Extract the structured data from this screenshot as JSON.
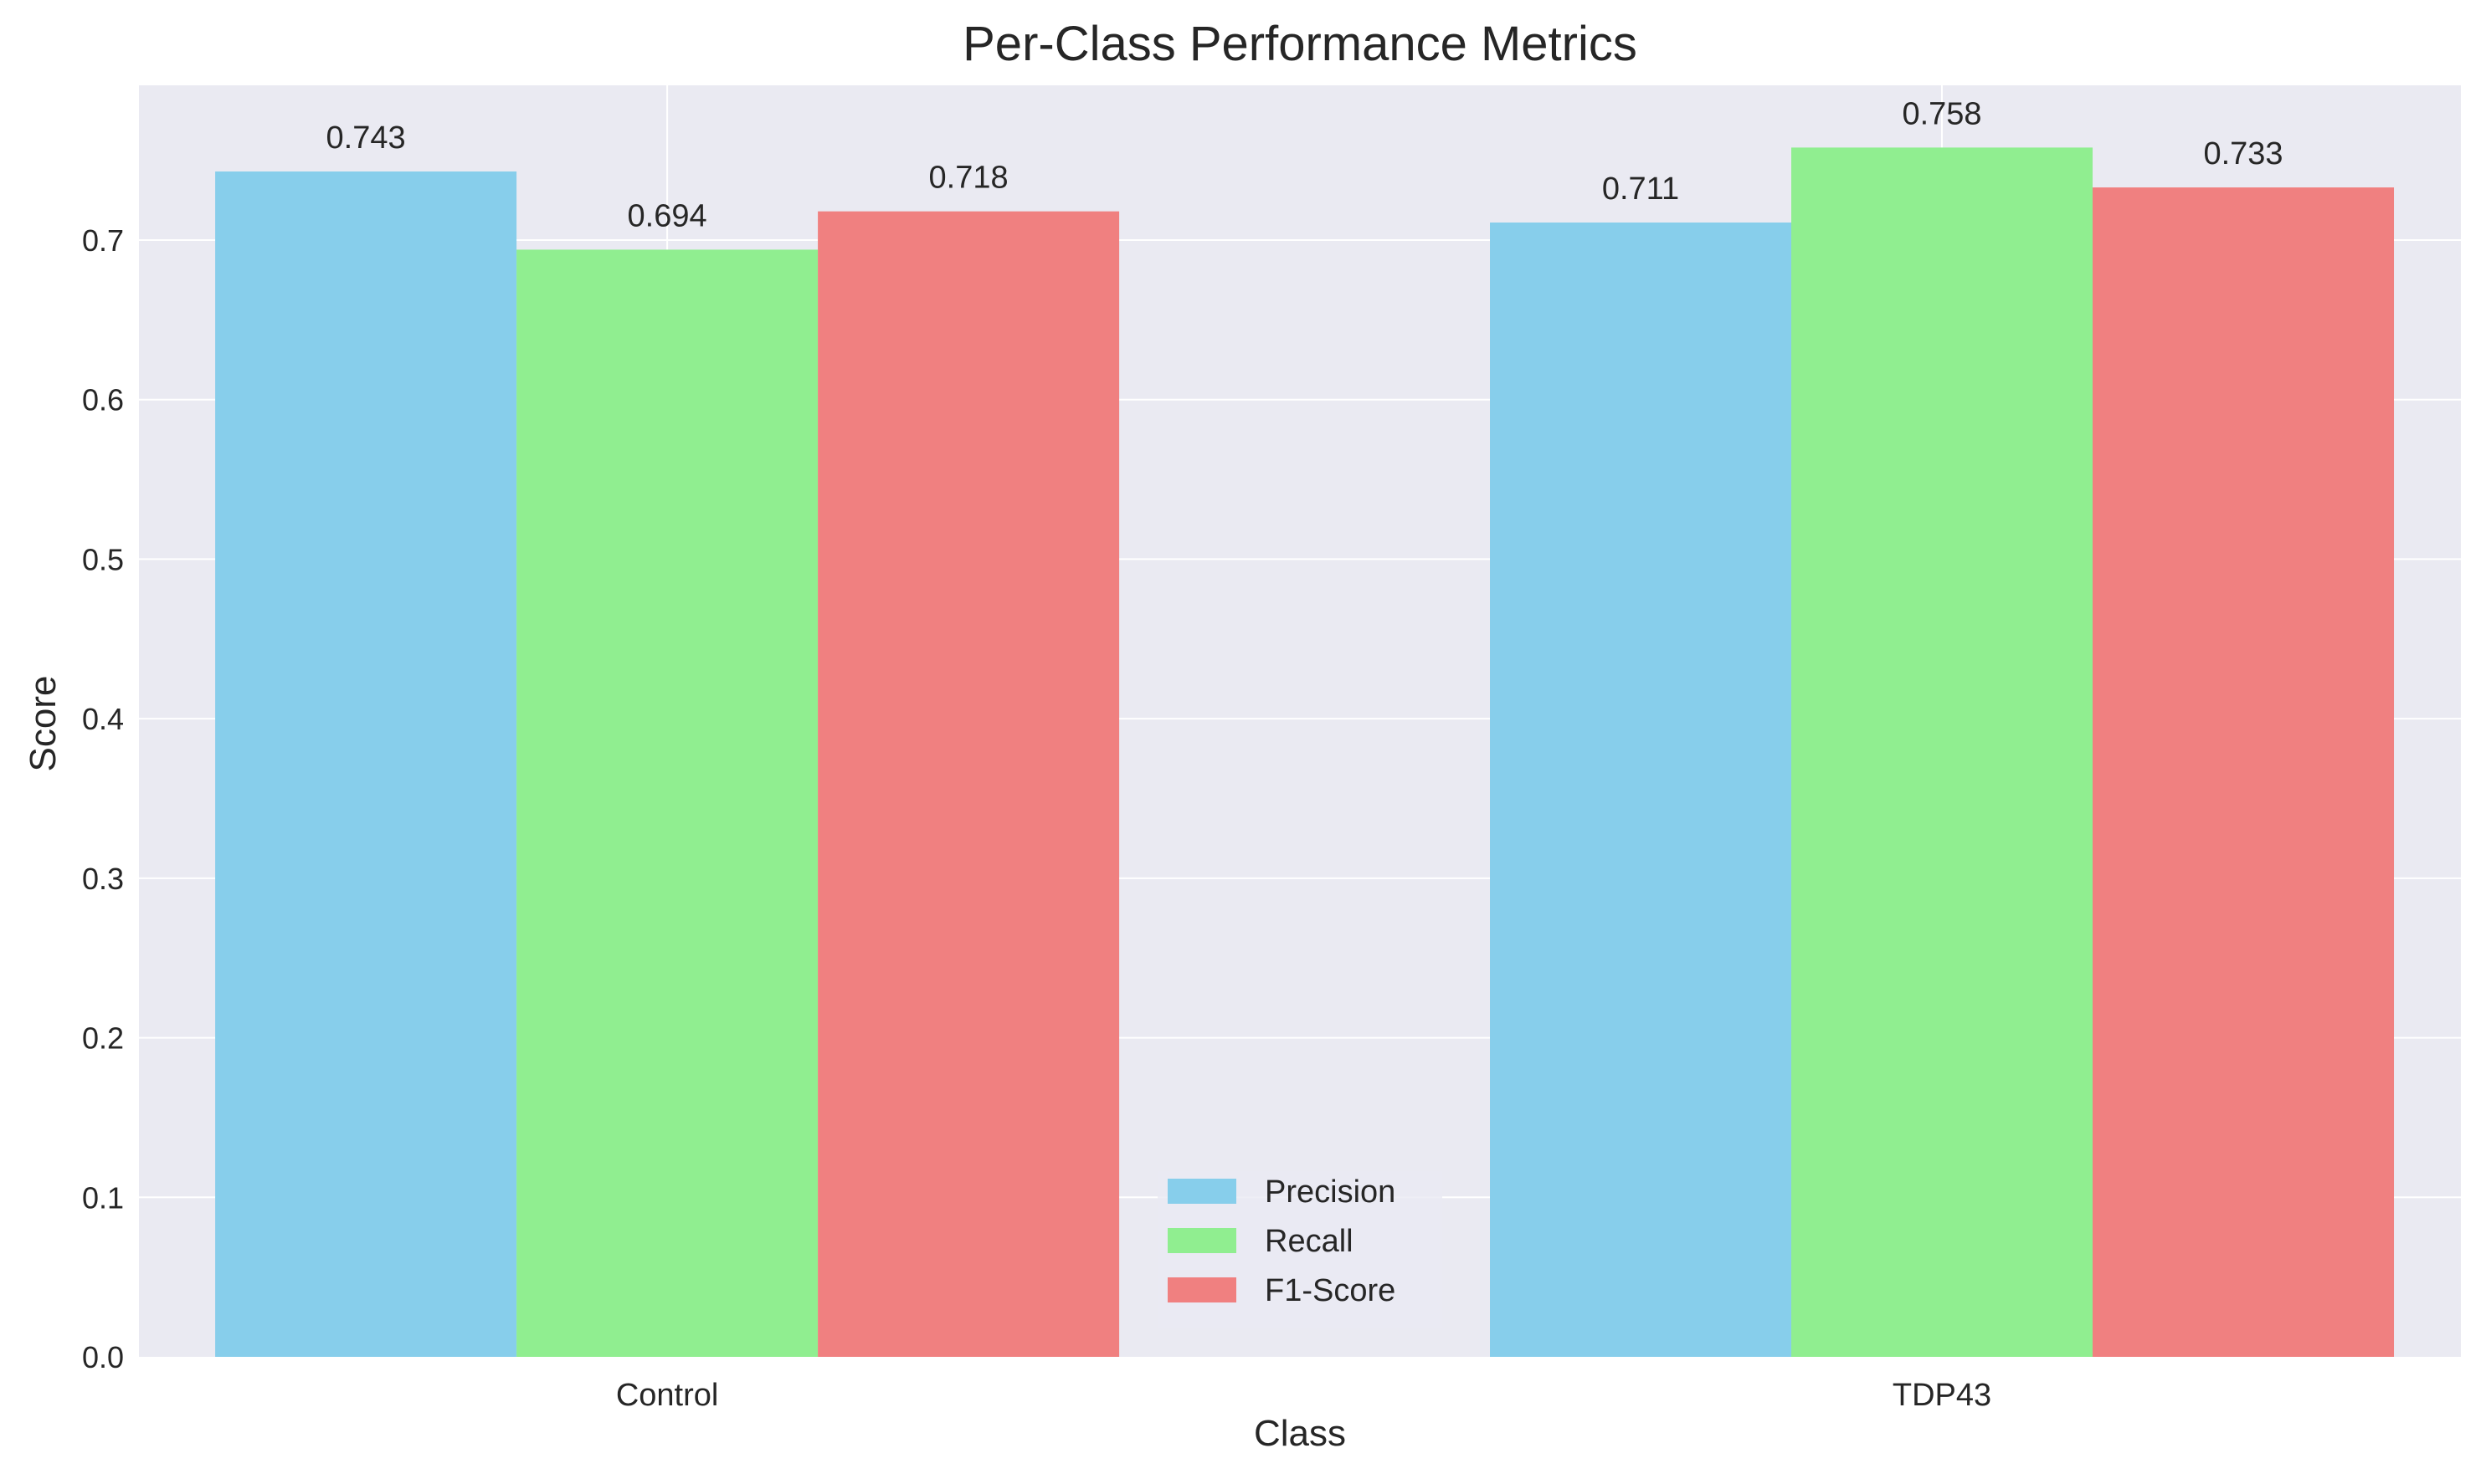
{
  "chart_data": {
    "type": "bar",
    "title": "Per-Class Performance Metrics",
    "xlabel": "Class",
    "ylabel": "Score",
    "categories": [
      "Control",
      "TDP43"
    ],
    "series": [
      {
        "name": "Precision",
        "values": [
          0.743,
          0.711
        ],
        "color": "#87ceeb"
      },
      {
        "name": "Recall",
        "values": [
          0.694,
          0.758
        ],
        "color": "#90ee90"
      },
      {
        "name": "F1-Score",
        "values": [
          0.718,
          0.733
        ],
        "color": "#f08080"
      }
    ],
    "data_labels": [
      [
        "0.743",
        "0.711"
      ],
      [
        "0.694",
        "0.758"
      ],
      [
        "0.718",
        "0.733"
      ]
    ],
    "ylim": [
      0,
      0.797
    ],
    "yticks": [
      0.0,
      0.1,
      0.2,
      0.3,
      0.4,
      0.5,
      0.6,
      0.7
    ],
    "ytick_labels": [
      "0.0",
      "0.1",
      "0.2",
      "0.3",
      "0.4",
      "0.5",
      "0.6",
      "0.7"
    ],
    "grid": true,
    "legend_position": "bottom-center",
    "background_color": "#eaeaf2",
    "grid_color": "#ffffff"
  }
}
